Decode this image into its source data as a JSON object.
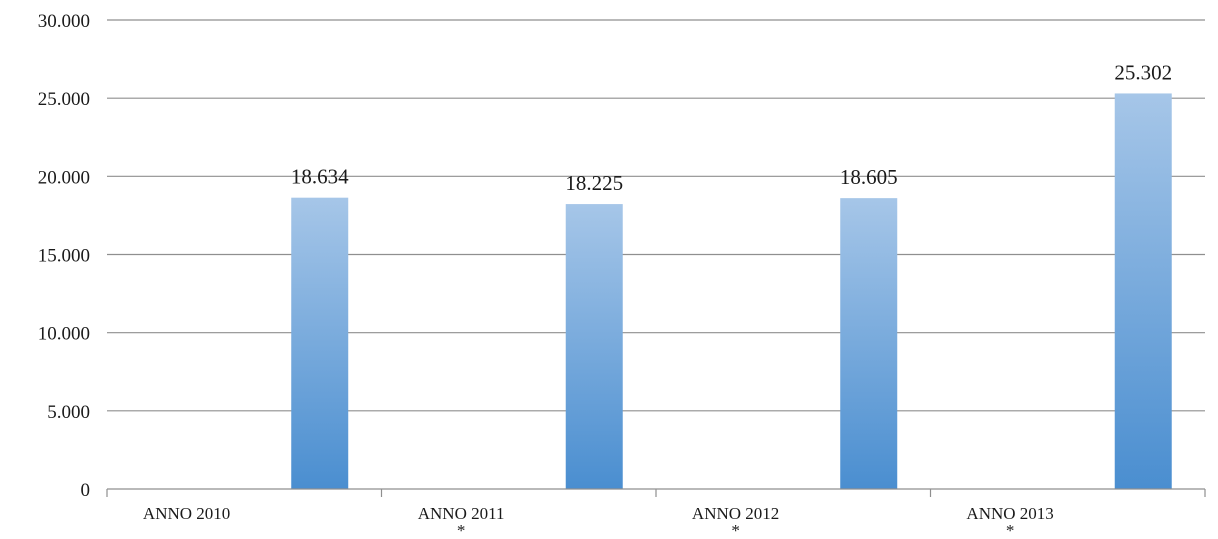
{
  "chart_data": {
    "type": "bar",
    "title": "",
    "xlabel": "",
    "ylabel": "",
    "categories": [
      "ANNO 2010",
      "ANNO 2011\n*",
      "ANNO 2012\n*",
      "ANNO 2013\n*"
    ],
    "values": [
      18634,
      18225,
      18605,
      25302
    ],
    "data_labels": [
      "18.634",
      "18.225",
      "18.605",
      "25.302"
    ],
    "ylim": [
      0,
      30000
    ],
    "y_ticks": [
      0,
      5000,
      10000,
      15000,
      20000,
      25000,
      30000
    ],
    "y_tick_labels": [
      "0",
      "5.000",
      "10.000",
      "15.000",
      "20.000",
      "25.000",
      "30.000"
    ],
    "grid": true,
    "legend": "none",
    "bar_color_top": "#a6c6e8",
    "bar_color_bottom": "#4a8ed0"
  }
}
